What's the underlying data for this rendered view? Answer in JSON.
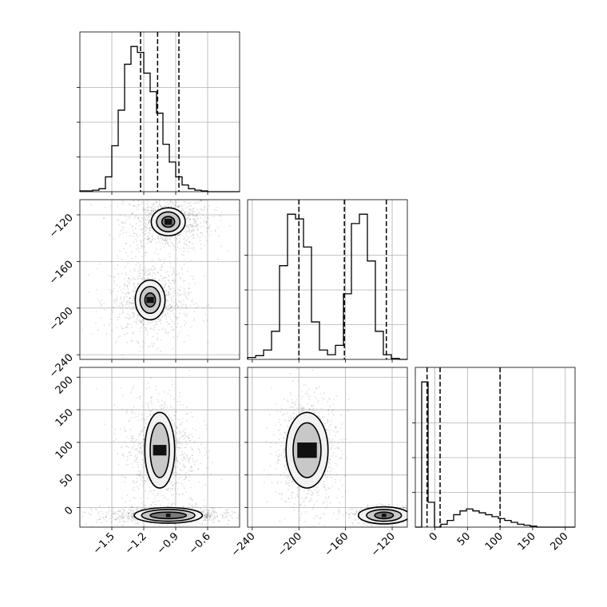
{
  "chart_data": {
    "type": "corner",
    "title": "",
    "parameters": [
      {
        "range": [
          -1.8,
          -0.3
        ],
        "ticks": [
          -1.5,
          -1.2,
          -0.9,
          -0.6
        ],
        "tick_labels": [
          "−1.5",
          "−1.2",
          "−0.9",
          "−0.6"
        ],
        "quantiles": [
          -1.23,
          -1.07,
          -0.87
        ]
      },
      {
        "range": [
          -244,
          -107
        ],
        "ticks": [
          -240,
          -200,
          -160,
          -120
        ],
        "tick_labels": [
          "−240",
          "−200",
          "−160",
          "−120"
        ],
        "quantiles": [
          -200,
          -161,
          -125
        ]
      },
      {
        "range": [
          -30,
          215
        ],
        "ticks": [
          0,
          50,
          100,
          150,
          200
        ],
        "tick_labels": [
          "0",
          "50",
          "100",
          "150",
          "200"
        ],
        "quantiles": [
          -12,
          8,
          100
        ]
      }
    ],
    "histograms": [
      {
        "param": 0,
        "edges_from": -1.8,
        "bin_width": 0.06,
        "counts": [
          1,
          1,
          2,
          4,
          20,
          62,
          110,
          172,
          196,
          188,
          160,
          135,
          106,
          64,
          40,
          20,
          9,
          4,
          2,
          1,
          0,
          0,
          0,
          0,
          0
        ]
      },
      {
        "param": 1,
        "edges_from": -244,
        "bin_width": 6.85,
        "counts": [
          2,
          4,
          10,
          30,
          100,
          155,
          150,
          120,
          40,
          10,
          5,
          15,
          70,
          145,
          155,
          105,
          30,
          5,
          1,
          0
        ]
      },
      {
        "param": 2,
        "edges_from": -30,
        "bin_width": 9.8,
        "counts": [
          0,
          152,
          26,
          0,
          3,
          7,
          13,
          17,
          19,
          17,
          15,
          13,
          11,
          9,
          7,
          5,
          3,
          2,
          1,
          0,
          0,
          0,
          0,
          0,
          0
        ]
      }
    ],
    "panels_2d": [
      {
        "x_param": 0,
        "y_param": 1,
        "modes": [
          {
            "cx": -0.97,
            "cy": -126,
            "sx": 0.13,
            "sy": 7.8,
            "levels": [
              [
                0.16,
                12
              ],
              [
                0.11,
                8.5
              ],
              [
                0.06,
                4.6
              ]
            ]
          },
          {
            "cx": -1.14,
            "cy": -193,
            "sx": 0.12,
            "sy": 10.5,
            "levels": [
              [
                0.14,
                17
              ],
              [
                0.095,
                11.5
              ],
              [
                0.05,
                6
              ]
            ]
          }
        ]
      },
      {
        "x_param": 0,
        "y_param": 2,
        "modes": [
          {
            "cx": -1.05,
            "cy": 88,
            "sx": 0.11,
            "sy": 28,
            "levels": [
              [
                0.14,
                58
              ],
              [
                0.09,
                42
              ]
            ]
          },
          {
            "cx": -0.97,
            "cy": -12,
            "sx": 0.2,
            "sy": 4,
            "levels": [
              [
                0.32,
                12
              ],
              [
                0.25,
                9
              ],
              [
                0.17,
                5
              ]
            ]
          }
        ]
      },
      {
        "x_param": 1,
        "y_param": 2,
        "modes": [
          {
            "cx": -193,
            "cy": 88,
            "sx": 9,
            "sy": 28,
            "levels": [
              [
                18,
                58
              ],
              [
                12,
                42
              ]
            ]
          },
          {
            "cx": -127,
            "cy": -12,
            "sx": 8,
            "sy": 4,
            "levels": [
              [
                22,
                13
              ],
              [
                15,
                9
              ],
              [
                8,
                5
              ]
            ]
          }
        ]
      }
    ],
    "grid": true,
    "legend": "none"
  }
}
